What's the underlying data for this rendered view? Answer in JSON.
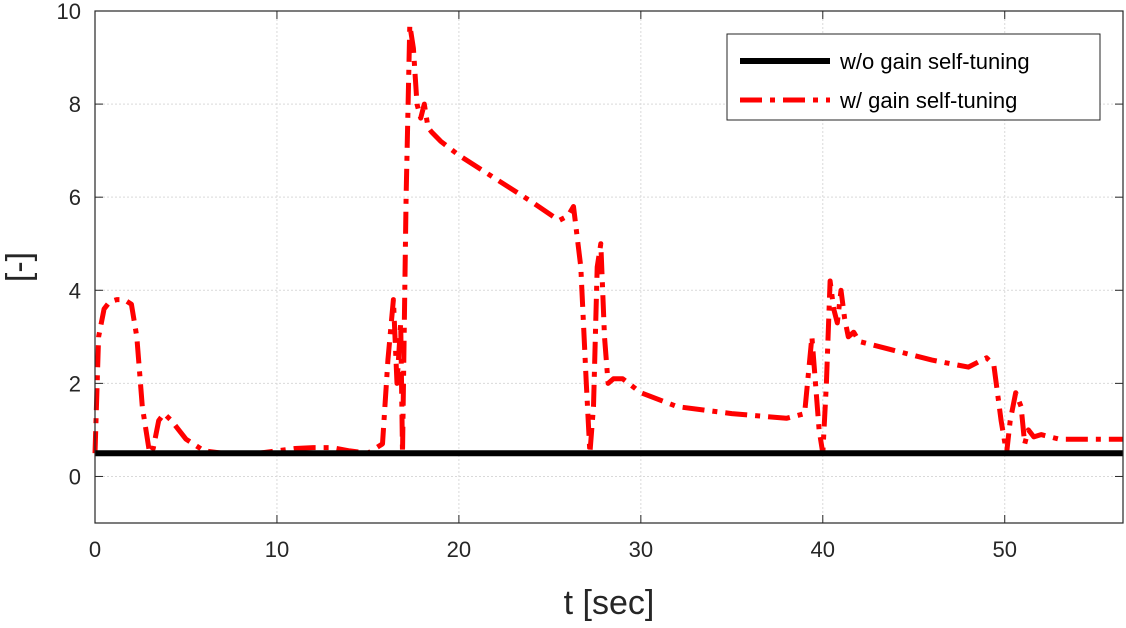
{
  "chart_data": {
    "type": "line",
    "title": "",
    "xlabel": "t [sec]",
    "ylabel": "[-]",
    "xlim": [
      0,
      56.5
    ],
    "ylim": [
      -1,
      10
    ],
    "xticks": [
      0,
      10,
      20,
      30,
      40,
      50
    ],
    "xtick_labels": [
      "0",
      "10",
      "20",
      "30",
      "40",
      "50"
    ],
    "yticks": [
      0,
      2,
      4,
      6,
      8,
      10
    ],
    "ytick_labels": [
      "0",
      "2",
      "4",
      "6",
      "8",
      "10"
    ],
    "grid": true,
    "legend_position": "top-right",
    "series": [
      {
        "name": "w/o gain self-tuning",
        "color": "#000000",
        "style": "solid",
        "x": [
          0,
          56.5
        ],
        "y": [
          0.5,
          0.5
        ]
      },
      {
        "name": "w/ gain self-tuning",
        "color": "#ff0000",
        "style": "dash-dot",
        "x": [
          0.0,
          0.2,
          0.5,
          0.8,
          1.2,
          1.6,
          2.0,
          2.3,
          2.6,
          3.0,
          3.2,
          3.5,
          3.8,
          4.2,
          5.0,
          6.0,
          7.0,
          8.0,
          9.0,
          10.0,
          11.0,
          12.0,
          13.0,
          14.0,
          15.0,
          15.8,
          16.1,
          16.4,
          16.6,
          16.8,
          16.9,
          17.1,
          17.3,
          17.5,
          17.7,
          17.9,
          18.1,
          18.3,
          18.5,
          19.0,
          20.0,
          22.0,
          24.0,
          25.5,
          26.0,
          26.3,
          26.7,
          27.0,
          27.2,
          27.4,
          27.6,
          27.8,
          28.0,
          28.2,
          28.5,
          29.0,
          30.0,
          32.0,
          35.0,
          38.0,
          39.0,
          39.4,
          39.6,
          39.8,
          40.0,
          40.2,
          40.4,
          40.6,
          40.8,
          41.0,
          41.2,
          41.4,
          41.7,
          42.0,
          44.0,
          46.0,
          48.0,
          49.0,
          49.4,
          49.8,
          50.1,
          50.3,
          50.6,
          50.9,
          51.1,
          51.3,
          51.6,
          52.0,
          53.0,
          54.0,
          55.0,
          56.5
        ],
        "y": [
          0.5,
          3.0,
          3.6,
          3.75,
          3.8,
          3.8,
          3.7,
          3.0,
          1.5,
          0.5,
          0.6,
          1.2,
          1.35,
          1.2,
          0.8,
          0.55,
          0.5,
          0.5,
          0.5,
          0.55,
          0.6,
          0.62,
          0.62,
          0.55,
          0.5,
          0.7,
          2.5,
          3.8,
          2.0,
          3.3,
          0.5,
          6.0,
          9.7,
          9.2,
          8.0,
          7.7,
          8.0,
          7.5,
          7.4,
          7.2,
          6.9,
          6.4,
          5.9,
          5.5,
          5.6,
          5.8,
          4.5,
          2.0,
          0.5,
          1.5,
          4.5,
          5.0,
          3.0,
          2.0,
          2.1,
          2.1,
          1.8,
          1.5,
          1.35,
          1.25,
          1.35,
          3.0,
          2.0,
          1.0,
          0.5,
          2.0,
          4.2,
          3.6,
          3.3,
          4.0,
          3.4,
          3.0,
          3.1,
          2.9,
          2.7,
          2.5,
          2.35,
          2.55,
          2.4,
          1.2,
          0.5,
          1.2,
          1.8,
          1.5,
          0.7,
          1.0,
          0.85,
          0.9,
          0.8,
          0.8,
          0.8,
          0.8
        ]
      }
    ]
  }
}
